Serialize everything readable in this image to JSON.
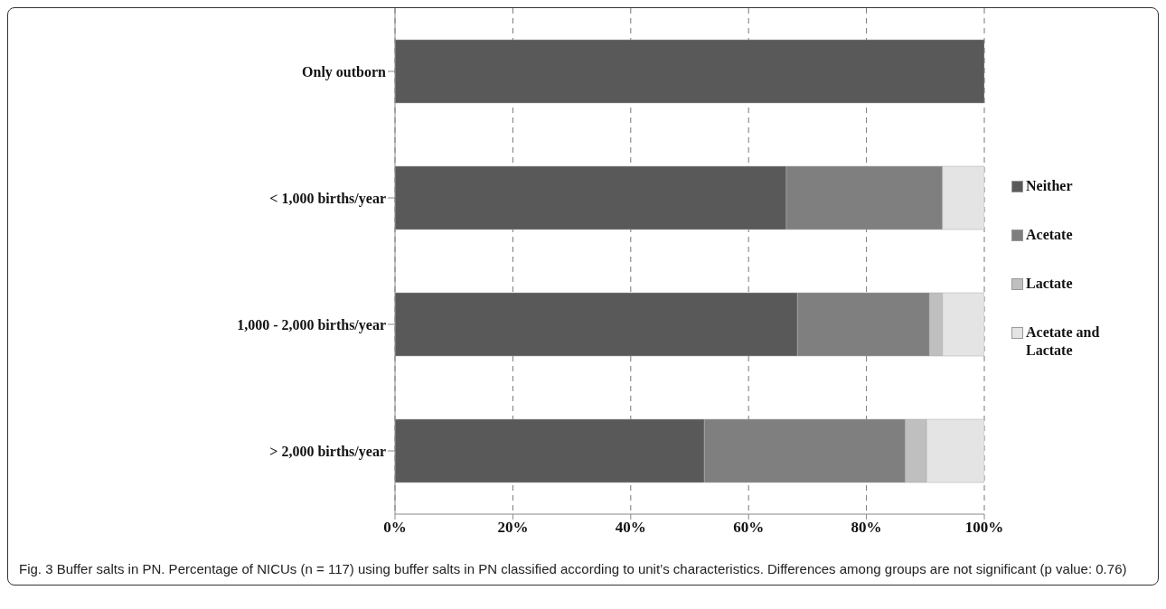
{
  "chart_data": {
    "type": "bar",
    "orientation": "horizontal",
    "stacked": true,
    "categories": [
      "Only outborn",
      "< 1,000 births/year",
      "1,000 - 2,000 births/year",
      "> 2,000 births/year"
    ],
    "series": [
      {
        "name": "Neither",
        "color": "#595959",
        "values": [
          100,
          66.4,
          68.3,
          52.5
        ]
      },
      {
        "name": "Acetate",
        "color": "#7f7f7f",
        "values": [
          0,
          26.5,
          22.4,
          34.1
        ]
      },
      {
        "name": "Lactate",
        "color": "#bfbfbf",
        "values": [
          0,
          0,
          2.2,
          3.6
        ]
      },
      {
        "name": "Acetate and Lactate",
        "color": "#e4e4e4",
        "values": [
          0,
          7.1,
          7.1,
          9.8
        ]
      }
    ],
    "xlim": [
      0,
      100
    ],
    "xticks": [
      {
        "value": 0,
        "label": "0%"
      },
      {
        "value": 20,
        "label": "20%"
      },
      {
        "value": 40,
        "label": "40%"
      },
      {
        "value": 60,
        "label": "60%"
      },
      {
        "value": 80,
        "label": "80%"
      },
      {
        "value": 100,
        "label": "100%"
      }
    ],
    "grid": "x",
    "legend": "right",
    "annotations": [
      "Fig. 3 Buffer salts in PN. Percentage of NICUs (n = 117) using buffer salts in PN classified according to unit’s characteristics. Differences among groups are not significant (p value: 0.76)"
    ]
  }
}
